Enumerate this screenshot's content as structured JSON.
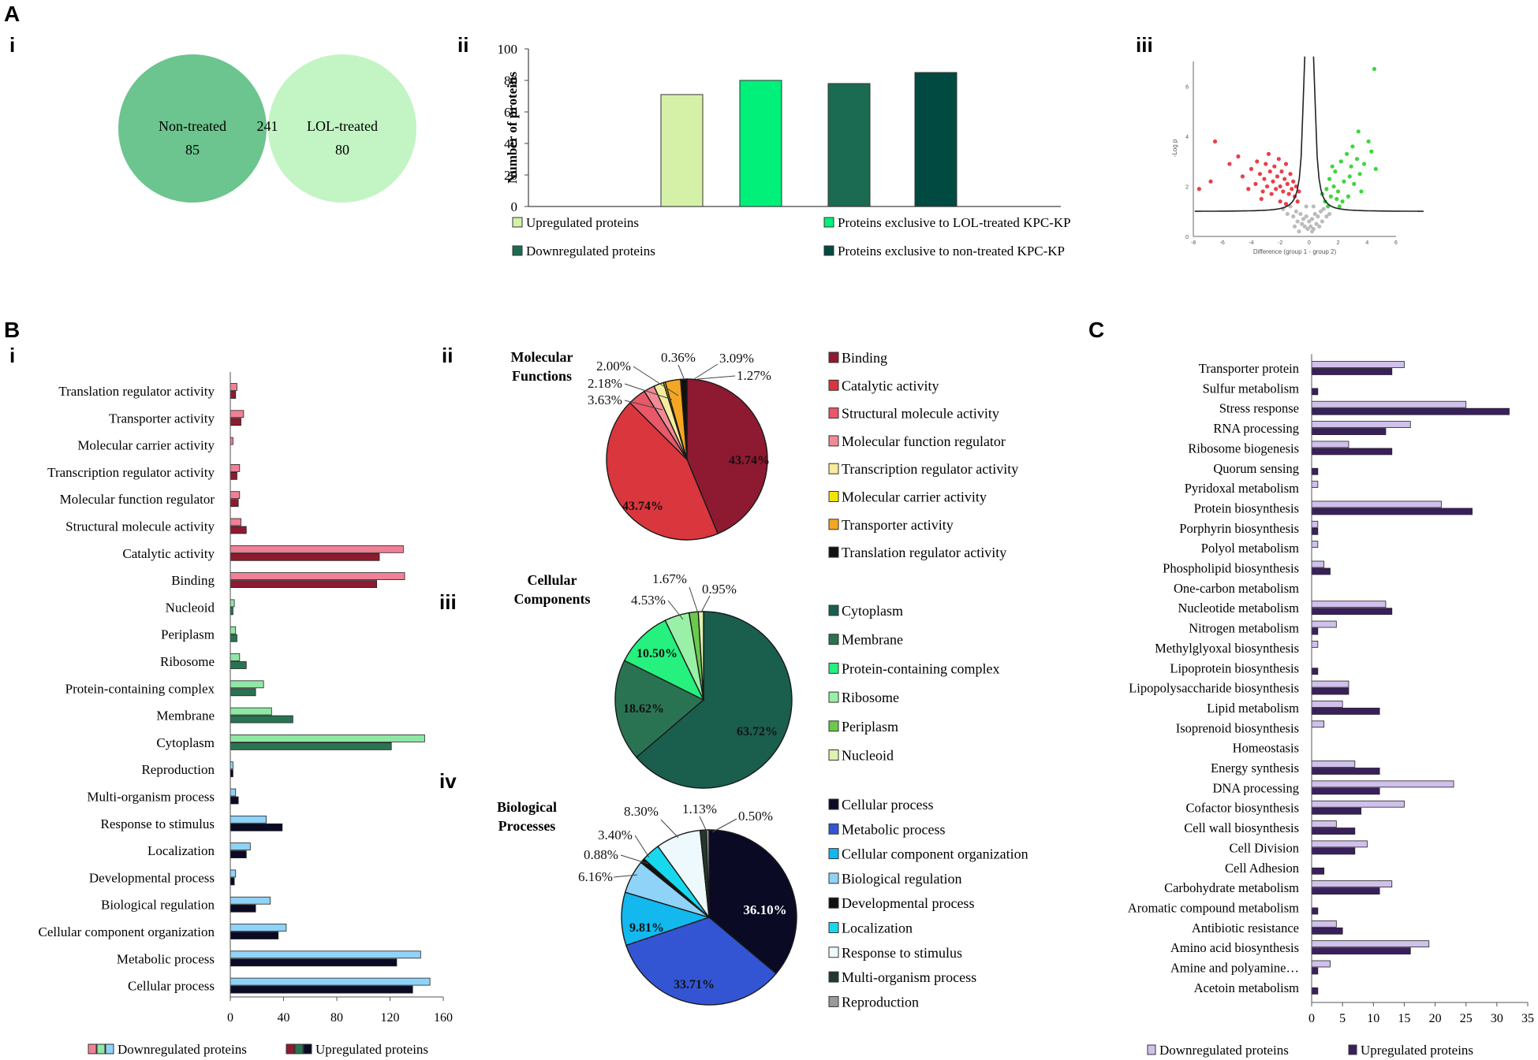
{
  "panel_labels": {
    "A": "A",
    "A_i": "i",
    "A_ii": "ii",
    "A_iii": "iii",
    "B": "B",
    "B_i": "i",
    "B_ii": "ii",
    "B_iii": "iii",
    "B_iv": "iv",
    "C": "C"
  },
  "colors": {
    "venn_left": "#6cc48e",
    "venn_right": "#c2f5c3",
    "venn_overlap": "#8ad99c",
    "up_green_light": "#d5f1a8",
    "lol_green": "#00f07a",
    "dark_green": "#1b6b52",
    "darkest_green": "#004a42",
    "mf_light": "#f08095",
    "mf_dark": "#8d1a30",
    "cc_light": "#8ee8a4",
    "cc_dark": "#2a7352",
    "bp_light": "#8fd3f8",
    "bp_dark": "#0a0a25",
    "c_light": "#d0c0ec",
    "c_dark": "#3a1f5e"
  },
  "chart_data": [
    {
      "id": "A_i",
      "type": "venn",
      "sets": [
        {
          "name": "Non-treated",
          "exclusive": 85
        },
        {
          "name": "LOL-treated",
          "exclusive": 80
        }
      ],
      "intersection": 241
    },
    {
      "id": "A_ii",
      "type": "bar",
      "ylabel": "Number of proteins",
      "ylim": [
        0,
        100
      ],
      "yticks": [
        0,
        20,
        40,
        60,
        80,
        100
      ],
      "categories": [
        "Upregulated proteins",
        "Proteins exclusive to LOL-treated KPC-KP",
        "Downregulated proteins",
        "Proteins exclusive to non-treated KPC-KP"
      ],
      "bars": [
        {
          "name": "Upregulated proteins",
          "value": 71,
          "color": "#d5f1a8"
        },
        {
          "name": "Proteins exclusive to LOL-treated KPC-KP",
          "value": 80,
          "color": "#00f07a"
        },
        {
          "name": "Downregulated proteins",
          "value": 78,
          "color": "#1b6b52"
        },
        {
          "name": "Proteins exclusive to non-treated KPC-KP",
          "value": 85,
          "color": "#004a42"
        }
      ],
      "legend_order": [
        0,
        1,
        2,
        3
      ]
    },
    {
      "id": "A_iii",
      "type": "scatter",
      "xlabel": "Difference (group 1 - group 2)",
      "ylabel": "-Log p",
      "xlim": [
        -8,
        6
      ],
      "ylim": [
        0,
        7
      ],
      "xticks": [
        -8,
        -6,
        -4,
        -2,
        0,
        2,
        4,
        6
      ],
      "yticks": [
        0,
        2,
        4,
        6
      ],
      "series": [
        {
          "name": "downregulated",
          "color": "#e8404a",
          "points": [
            [
              -6.5,
              3.8
            ],
            [
              -7.6,
              1.9
            ],
            [
              -6.8,
              2.2
            ],
            [
              -5.5,
              2.9
            ],
            [
              -4.9,
              3.2
            ],
            [
              -4.6,
              2.4
            ],
            [
              -4.2,
              1.9
            ],
            [
              -4.0,
              2.7
            ],
            [
              -3.7,
              2.1
            ],
            [
              -3.6,
              3.0
            ],
            [
              -3.4,
              2.5
            ],
            [
              -3.2,
              1.8
            ],
            [
              -3.1,
              2.3
            ],
            [
              -3.0,
              2.9
            ],
            [
              -2.9,
              2.0
            ],
            [
              -2.8,
              3.3
            ],
            [
              -2.7,
              2.6
            ],
            [
              -2.6,
              1.7
            ],
            [
              -2.5,
              2.2
            ],
            [
              -2.4,
              2.8
            ],
            [
              -2.3,
              1.9
            ],
            [
              -2.2,
              2.4
            ],
            [
              -2.1,
              3.1
            ],
            [
              -2.0,
              2.0
            ],
            [
              -1.9,
              2.6
            ],
            [
              -1.8,
              1.8
            ],
            [
              -1.7,
              2.3
            ],
            [
              -1.6,
              2.9
            ],
            [
              -1.5,
              2.1
            ],
            [
              -1.4,
              1.7
            ],
            [
              -1.3,
              2.5
            ],
            [
              -1.2,
              1.9
            ],
            [
              -1.1,
              2.2
            ],
            [
              -1.0,
              1.6
            ],
            [
              -0.9,
              2.0
            ],
            [
              -0.8,
              1.4
            ],
            [
              -0.7,
              1.8
            ],
            [
              -3.3,
              1.5
            ],
            [
              -2.0,
              1.4
            ],
            [
              -1.6,
              1.3
            ]
          ]
        },
        {
          "name": "upregulated",
          "color": "#3dd63d",
          "points": [
            [
              4.5,
              6.7
            ],
            [
              3.4,
              4.2
            ],
            [
              3.0,
              3.6
            ],
            [
              4.1,
              3.8
            ],
            [
              2.6,
              3.3
            ],
            [
              2.2,
              3.0
            ],
            [
              1.8,
              2.6
            ],
            [
              2.9,
              2.8
            ],
            [
              3.3,
              3.1
            ],
            [
              3.8,
              2.9
            ],
            [
              1.4,
              2.3
            ],
            [
              1.7,
              2.0
            ],
            [
              2.0,
              1.8
            ],
            [
              2.4,
              2.2
            ],
            [
              2.8,
              2.4
            ],
            [
              3.1,
              2.1
            ],
            [
              1.2,
              1.9
            ],
            [
              1.5,
              1.6
            ],
            [
              1.9,
              1.5
            ],
            [
              2.3,
              1.4
            ],
            [
              2.7,
              1.6
            ],
            [
              3.5,
              2.5
            ],
            [
              4.3,
              3.4
            ],
            [
              1.1,
              1.4
            ],
            [
              1.3,
              1.2
            ],
            [
              2.1,
              1.2
            ],
            [
              3.6,
              1.8
            ],
            [
              4.6,
              2.7
            ],
            [
              1.6,
              2.8
            ],
            [
              0.9,
              1.7
            ]
          ]
        },
        {
          "name": "not significant",
          "color": "#bbbbbb",
          "points": [
            [
              -1.8,
              1.1
            ],
            [
              -1.5,
              0.9
            ],
            [
              -1.3,
              1.2
            ],
            [
              -1.1,
              0.8
            ],
            [
              -0.9,
              1.0
            ],
            [
              -0.8,
              0.6
            ],
            [
              -0.6,
              0.9
            ],
            [
              -0.5,
              0.5
            ],
            [
              -0.4,
              0.7
            ],
            [
              -0.3,
              0.4
            ],
            [
              -0.2,
              0.8
            ],
            [
              -0.1,
              0.3
            ],
            [
              0.0,
              0.6
            ],
            [
              0.1,
              0.4
            ],
            [
              0.2,
              0.7
            ],
            [
              0.3,
              0.3
            ],
            [
              0.4,
              0.9
            ],
            [
              0.5,
              0.5
            ],
            [
              0.6,
              0.8
            ],
            [
              0.7,
              0.4
            ],
            [
              0.8,
              1.0
            ],
            [
              0.9,
              0.6
            ],
            [
              1.0,
              1.1
            ],
            [
              1.2,
              0.8
            ],
            [
              1.4,
              0.9
            ],
            [
              -1.0,
              0.4
            ],
            [
              -0.7,
              0.2
            ],
            [
              0.2,
              0.2
            ],
            [
              -0.2,
              1.2
            ],
            [
              0.3,
              1.2
            ]
          ]
        }
      ]
    },
    {
      "id": "B_i",
      "type": "bar",
      "orientation": "horizontal",
      "xlim": [
        0,
        160
      ],
      "xticks": [
        0,
        40,
        80,
        120,
        160
      ],
      "categories": [
        "Translation regulator activity",
        "Transporter activity",
        "Molecular carrier activity",
        "Transcription regulator activity",
        "Molecular function regulator",
        "Structural molecule activity",
        "Catalytic activity",
        "Binding",
        "Nucleoid",
        "Periplasm",
        "Ribosome",
        "Protein-containing complex",
        "Membrane",
        "Cytoplasm",
        "Reproduction",
        "Multi-organism process",
        "Response to stimulus",
        "Localization",
        "Developmental process",
        "Biological regulation",
        "Cellular component organization",
        "Metabolic process",
        "Cellular process"
      ],
      "groups": [
        "mf",
        "mf",
        "mf",
        "mf",
        "mf",
        "mf",
        "mf",
        "mf",
        "cc",
        "cc",
        "cc",
        "cc",
        "cc",
        "cc",
        "bp",
        "bp",
        "bp",
        "bp",
        "bp",
        "bp",
        "bp",
        "bp",
        "bp"
      ],
      "series": [
        {
          "name": "Downregulated proteins",
          "values": [
            5,
            10,
            2,
            7,
            7,
            8,
            130,
            131,
            3,
            4,
            7,
            25,
            31,
            146,
            2,
            4,
            27,
            15,
            4,
            30,
            42,
            143,
            150
          ]
        },
        {
          "name": "Upregulated proteins",
          "values": [
            4,
            8,
            0,
            5,
            6,
            12,
            112,
            110,
            2,
            5,
            12,
            19,
            47,
            121,
            2,
            6,
            39,
            12,
            3,
            19,
            36,
            125,
            137
          ]
        }
      ],
      "legend": [
        "Downregulated proteins",
        "Upregulated proteins"
      ]
    },
    {
      "id": "B_ii",
      "type": "pie",
      "title": "Molecular Functions",
      "labels": [
        "Binding",
        "Catalytic activity",
        "Structural molecule activity",
        "Molecular function regulator",
        "Transcription regulator activity",
        "Molecular carrier activity",
        "Transporter activity",
        "Translation regulator activity"
      ],
      "values": [
        43.74,
        43.74,
        3.63,
        2.18,
        2.0,
        0.36,
        3.09,
        1.27
      ],
      "display": [
        "43.74%",
        "43.74%",
        "3.63%",
        "2.18%",
        "2.00%",
        "0.36%",
        "3.09%",
        "1.27%"
      ],
      "colors": [
        "#8d1a30",
        "#d9363e",
        "#e95868",
        "#f08b95",
        "#f7ec9d",
        "#f2e500",
        "#f5a623",
        "#111111"
      ]
    },
    {
      "id": "B_iii",
      "type": "pie",
      "title": "Cellular Components",
      "labels": [
        "Cytoplasm",
        "Membrane",
        "Protein-containing complex",
        "Ribosome",
        "Periplasm",
        "Nucleoid"
      ],
      "values": [
        63.72,
        18.62,
        10.5,
        4.53,
        1.67,
        0.95
      ],
      "display": [
        "63.72%",
        "18.62%",
        "10.50%",
        "4.53%",
        "1.67%",
        "0.95%"
      ],
      "colors": [
        "#1a5e4e",
        "#2a7352",
        "#26f07e",
        "#9af0a6",
        "#6bc94b",
        "#dff2b0"
      ]
    },
    {
      "id": "B_iv",
      "type": "pie",
      "title": "Biological Processes",
      "labels": [
        "Cellular process",
        "Metabolic process",
        "Cellular component organization",
        "Biological regulation",
        "Developmental process",
        "Localization",
        "Response to stimulus",
        "Multi-organism process",
        "Reproduction"
      ],
      "values": [
        36.1,
        33.71,
        9.81,
        6.16,
        0.88,
        3.4,
        8.3,
        1.13,
        0.5
      ],
      "display": [
        "36.10%",
        "33.71%",
        "9.81%",
        "6.16%",
        "0.88%",
        "3.40%",
        "8.30%",
        "1.13%",
        "0.50%"
      ],
      "colors": [
        "#0a0a25",
        "#3355d4",
        "#12b8ee",
        "#8fd3f8",
        "#111111",
        "#18d8ee",
        "#eef9fd",
        "#23382e",
        "#9a9a9a"
      ]
    },
    {
      "id": "C",
      "type": "bar",
      "orientation": "horizontal",
      "xlim": [
        0,
        35
      ],
      "xticks": [
        0,
        5,
        10,
        15,
        20,
        25,
        30,
        35
      ],
      "categories": [
        "Transporter protein",
        "Sulfur metabolism",
        "Stress response",
        "RNA processing",
        "Ribosome biogenesis",
        "Quorum sensing",
        "Pyridoxal metabolism",
        "Protein biosynthesis",
        "Porphyrin biosynthesis",
        "Polyol metabolism",
        "Phospholipid biosynthesis",
        "One-carbon metabolism",
        "Nucleotide metabolism",
        "Nitrogen metabolism",
        "Methylglyoxal biosynthesis",
        "Lipoprotein biosynthesis",
        "Lipopolysaccharide biosynthesis",
        "Lipid metabolism",
        "Isoprenoid biosynthesis",
        "Homeostasis",
        "Energy synthesis",
        "DNA processing",
        "Cofactor biosynthesis",
        "Cell wall biosynthesis",
        "Cell Division",
        "Cell Adhesion",
        "Carbohydrate metabolism",
        "Aromatic compound metabolism",
        "Antibiotic resistance",
        "Amino acid biosynthesis",
        "Amine and polyamine…",
        "Acetoin metabolism"
      ],
      "series": [
        {
          "name": "Downregulated proteins",
          "values": [
            15,
            0,
            25,
            16,
            6,
            0,
            1,
            21,
            1,
            1,
            2,
            0,
            12,
            4,
            1,
            0,
            6,
            5,
            2,
            0,
            7,
            23,
            15,
            4,
            9,
            0,
            13,
            0,
            4,
            19,
            3,
            0
          ]
        },
        {
          "name": "Upregulated proteins",
          "values": [
            13,
            1,
            32,
            12,
            13,
            1,
            0,
            26,
            1,
            0,
            3,
            0,
            13,
            1,
            0,
            1,
            6,
            11,
            0,
            0,
            11,
            11,
            8,
            7,
            7,
            2,
            11,
            1,
            5,
            16,
            1,
            1
          ]
        }
      ],
      "legend": [
        "Downregulated proteins",
        "Upregulated proteins"
      ]
    }
  ]
}
